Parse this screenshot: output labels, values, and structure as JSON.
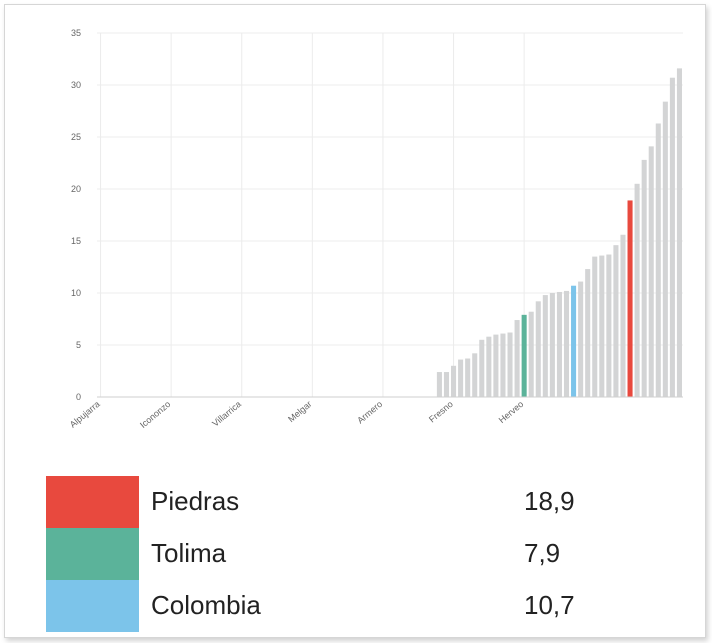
{
  "chart_data": {
    "type": "bar",
    "title": "",
    "xlabel": "",
    "ylabel": "",
    "ylim": [
      0,
      35
    ],
    "yticks": [
      0,
      5,
      10,
      15,
      20,
      25,
      30,
      35
    ],
    "grid": true,
    "tick_labels": [
      "Alpujarra",
      "Icononzo",
      "Villarrica",
      "Melgar",
      "Armero",
      "Fresno",
      "Herveo"
    ],
    "values": [
      0,
      0,
      0,
      0,
      0,
      0,
      0,
      0,
      0,
      0,
      0,
      0,
      0,
      0,
      0,
      0,
      0,
      0,
      0,
      0,
      0,
      0,
      0,
      0,
      0,
      0,
      0,
      0,
      0,
      0,
      0,
      0,
      0,
      0,
      0,
      0,
      0,
      0,
      0,
      0,
      0,
      0,
      0,
      0,
      0,
      0,
      0,
      0,
      2.4,
      2.4,
      3.0,
      3.6,
      3.7,
      4.2,
      5.5,
      5.8,
      6.0,
      6.1,
      6.2,
      7.4,
      7.9,
      8.2,
      9.2,
      9.8,
      10.0,
      10.1,
      10.2,
      10.7,
      11.1,
      12.3,
      13.5,
      13.6,
      13.7,
      14.6,
      15.6,
      18.9,
      20.5,
      22.8,
      24.1,
      26.3,
      28.4,
      30.7,
      31.6
    ],
    "highlights": [
      {
        "name": "Tolima",
        "value": 7.9,
        "color": "#5bb39a"
      },
      {
        "name": "Colombia",
        "value": 10.7,
        "color": "#7cc4ea"
      },
      {
        "name": "Piedras",
        "value": 18.9,
        "color": "#e8493e"
      }
    ],
    "default_bar_color": "#d3d4d5"
  },
  "legend": [
    {
      "label": "Piedras",
      "value": "18,9",
      "color": "#e8493e"
    },
    {
      "label": "Tolima",
      "value": "7,9",
      "color": "#5bb39a"
    },
    {
      "label": "Colombia",
      "value": "10,7",
      "color": "#7cc4ea"
    }
  ]
}
